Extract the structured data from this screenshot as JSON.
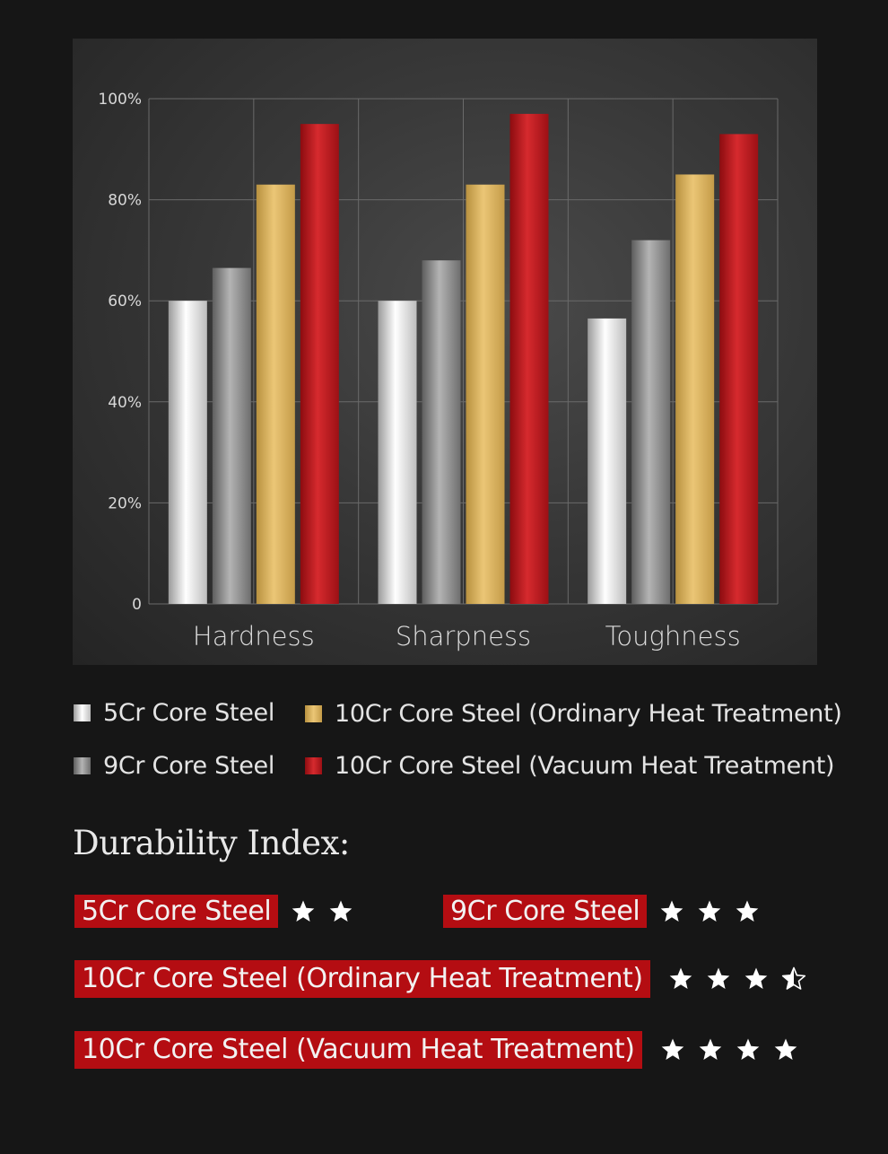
{
  "chart_data": {
    "type": "bar",
    "categories": [
      "Hardness",
      "Sharpness",
      "Toughness"
    ],
    "series": [
      {
        "name": "5Cr Core Steel",
        "values": [
          60,
          60,
          56.5
        ],
        "color": "#e8e8e8",
        "gradient": [
          "#9a9a9a",
          "#ffffff",
          "#bdbdbd"
        ]
      },
      {
        "name": "9Cr Core Steel",
        "values": [
          66.5,
          68,
          72
        ],
        "color": "#8a8a8a",
        "gradient": [
          "#5e5e5e",
          "#b4b4b4",
          "#6e6e6e"
        ]
      },
      {
        "name": "10Cr Core Steel (Ordinary Heat Treatment)",
        "values": [
          83,
          83,
          85
        ],
        "color": "#d9b25c",
        "gradient": [
          "#b8913f",
          "#ebc676",
          "#c49b48"
        ]
      },
      {
        "name": "10Cr Core Steel (Vacuum Heat Treatment)",
        "values": [
          95,
          97,
          93
        ],
        "color": "#b3141b",
        "gradient": [
          "#8c0c10",
          "#d62a2e",
          "#9c1015"
        ]
      }
    ],
    "y_ticks": [
      "0",
      "20%",
      "40%",
      "60%",
      "80%",
      "100%"
    ],
    "ylim": [
      0,
      100
    ],
    "grid": true,
    "legend_position": "bottom"
  },
  "legend": [
    {
      "label": "5Cr Core Steel"
    },
    {
      "label": "10Cr Core Steel (Ordinary Heat Treatment)"
    },
    {
      "label": "9Cr Core Steel"
    },
    {
      "label": "10Cr Core Steel (Vacuum Heat Treatment)"
    }
  ],
  "durability": {
    "title": "Durability  Index:",
    "items": [
      {
        "label": "5Cr Core Steel",
        "stars": 2
      },
      {
        "label": "9Cr Core Steel",
        "stars": 3
      },
      {
        "label": "10Cr  Core Steel (Ordinary Heat Treatment)",
        "stars": 3.5
      },
      {
        "label": "10Cr  Core Steel (Vacuum Heat Treatment)",
        "stars": 4
      }
    ]
  }
}
